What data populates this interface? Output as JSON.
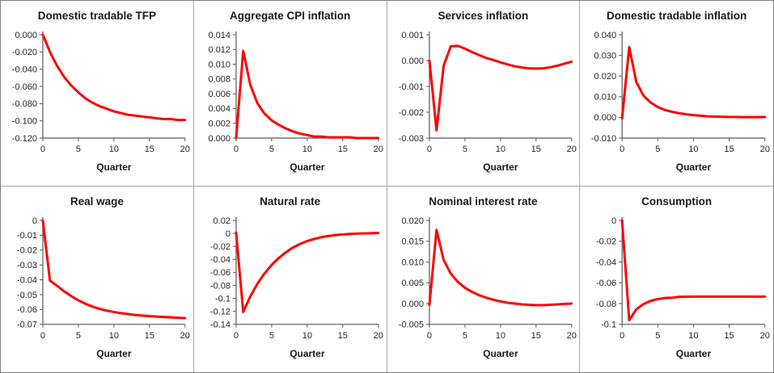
{
  "figure": {
    "layout": "2 rows x 4 columns",
    "panel_count": 8
  },
  "colors": {
    "line": "#FF0000",
    "axis": "#595959",
    "tick_text": "#262626",
    "title_text": "#1a1a1a",
    "outer_border": "#7f7f7f",
    "divider": "#a6a6a6",
    "background": "#ffffff"
  },
  "chart_data": [
    {
      "type": "line",
      "title": "Domestic tradable TFP",
      "xlabel": "Quarter",
      "xlim": [
        0,
        20
      ],
      "xticks": [
        0,
        5,
        10,
        15,
        20
      ],
      "ylim": [
        -0.12,
        0.0
      ],
      "yticks": [
        "0.000",
        "-0.020",
        "-0.040",
        "-0.060",
        "-0.080",
        "-0.100",
        "-0.120"
      ],
      "x": [
        0,
        1,
        2,
        3,
        4,
        5,
        6,
        7,
        8,
        9,
        10,
        11,
        12,
        13,
        14,
        15,
        16,
        17,
        18,
        19,
        20
      ],
      "values": [
        0,
        -0.02,
        -0.036,
        -0.049,
        -0.059,
        -0.067,
        -0.074,
        -0.079,
        -0.083,
        -0.086,
        -0.089,
        -0.091,
        -0.093,
        -0.094,
        -0.095,
        -0.096,
        -0.097,
        -0.098,
        -0.098,
        -0.099,
        -0.099
      ],
      "line_color": "#FF0000"
    },
    {
      "type": "line",
      "title": "Aggregate CPI inflation",
      "xlabel": "Quarter",
      "xlim": [
        0,
        20
      ],
      "xticks": [
        0,
        5,
        10,
        15,
        20
      ],
      "ylim": [
        0.0,
        0.014
      ],
      "yticks": [
        "0.014",
        "0.012",
        "0.010",
        "0.008",
        "0.006",
        "0.004",
        "0.002",
        "0.000"
      ],
      "x": [
        0,
        1,
        2,
        3,
        4,
        5,
        6,
        7,
        8,
        9,
        10,
        11,
        12,
        13,
        14,
        15,
        16,
        17,
        18,
        19,
        20
      ],
      "values": [
        0,
        0.0118,
        0.0072,
        0.0047,
        0.0033,
        0.0024,
        0.0018,
        0.0013,
        0.0009,
        0.0006,
        0.0004,
        0.0002,
        0.0002,
        0.0001,
        0.0001,
        0.0001,
        0.0001,
        0.0,
        0.0,
        0.0,
        0.0
      ],
      "line_color": "#FF0000"
    },
    {
      "type": "line",
      "title": "Services inflation",
      "xlabel": "Quarter",
      "xlim": [
        0,
        20
      ],
      "xticks": [
        0,
        5,
        10,
        15,
        20
      ],
      "ylim": [
        -0.003,
        0.001
      ],
      "yticks": [
        "0.001",
        "0.000",
        "-0.001",
        "-0.002",
        "-0.003"
      ],
      "x": [
        0,
        1,
        2,
        3,
        4,
        5,
        6,
        7,
        8,
        9,
        10,
        11,
        12,
        13,
        14,
        15,
        16,
        17,
        18,
        19,
        20
      ],
      "values": [
        0,
        -0.0027,
        -0.0002,
        0.00055,
        0.00057,
        0.00046,
        0.00033,
        0.00021,
        0.0001,
        2e-05,
        -7e-05,
        -0.00015,
        -0.00022,
        -0.00027,
        -0.0003,
        -0.00031,
        -0.0003,
        -0.00026,
        -0.0002,
        -0.00012,
        -4e-05
      ],
      "line_color": "#FF0000"
    },
    {
      "type": "line",
      "title": "Domestic tradable inflation",
      "xlabel": "Quarter",
      "xlim": [
        0,
        20
      ],
      "xticks": [
        0,
        5,
        10,
        15,
        20
      ],
      "ylim": [
        -0.01,
        0.04
      ],
      "yticks": [
        "0.040",
        "0.030",
        "0.020",
        "0.010",
        "0.000",
        "-0.010"
      ],
      "x": [
        0,
        1,
        2,
        3,
        4,
        5,
        6,
        7,
        8,
        9,
        10,
        11,
        12,
        13,
        14,
        15,
        16,
        17,
        18,
        19,
        20
      ],
      "values": [
        -0.0005,
        0.034,
        0.017,
        0.0105,
        0.0072,
        0.005,
        0.0036,
        0.0027,
        0.002,
        0.0015,
        0.0011,
        0.0008,
        0.0005,
        0.0004,
        0.0003,
        0.0002,
        0.0002,
        0.0001,
        0.0001,
        0.0001,
        0.0002
      ],
      "line_color": "#FF0000"
    },
    {
      "type": "line",
      "title": "Real wage",
      "xlabel": "Quarter",
      "xlim": [
        0,
        20
      ],
      "xticks": [
        0,
        5,
        10,
        15,
        20
      ],
      "ylim": [
        -0.07,
        0.0
      ],
      "yticks": [
        "0",
        "-0.01",
        "-0.02",
        "-0.03",
        "-0.04",
        "-0.05",
        "-0.06",
        "-0.07"
      ],
      "x": [
        0,
        1,
        2,
        3,
        4,
        5,
        6,
        7,
        8,
        9,
        10,
        11,
        12,
        13,
        14,
        15,
        16,
        17,
        18,
        19,
        20
      ],
      "values": [
        0,
        -0.0405,
        -0.044,
        -0.0478,
        -0.051,
        -0.0538,
        -0.0562,
        -0.0581,
        -0.0596,
        -0.0608,
        -0.0617,
        -0.0625,
        -0.0631,
        -0.0637,
        -0.0641,
        -0.0645,
        -0.0648,
        -0.0651,
        -0.0653,
        -0.0656,
        -0.0658
      ],
      "line_color": "#FF0000"
    },
    {
      "type": "line",
      "title": "Natural rate",
      "xlabel": "Quarter",
      "xlim": [
        0,
        20
      ],
      "xticks": [
        0,
        5,
        10,
        15,
        20
      ],
      "ylim": [
        -0.14,
        0.02
      ],
      "yticks": [
        "0.02",
        "0",
        "-0.02",
        "-0.04",
        "-0.06",
        "-0.08",
        "-0.1",
        "-0.12",
        "-0.14"
      ],
      "x": [
        0,
        1,
        2,
        3,
        4,
        5,
        6,
        7,
        8,
        9,
        10,
        11,
        12,
        13,
        14,
        15,
        16,
        17,
        18,
        19,
        20
      ],
      "values": [
        0.001,
        -0.121,
        -0.097,
        -0.0775,
        -0.0615,
        -0.0485,
        -0.0378,
        -0.029,
        -0.0218,
        -0.0162,
        -0.0118,
        -0.0084,
        -0.0058,
        -0.0039,
        -0.0025,
        -0.0015,
        -0.0008,
        -0.0003,
        0.0,
        0.0003,
        0.0008
      ],
      "line_color": "#FF0000"
    },
    {
      "type": "line",
      "title": "Nominal interest rate",
      "xlabel": "Quarter",
      "xlim": [
        0,
        20
      ],
      "xticks": [
        0,
        5,
        10,
        15,
        20
      ],
      "ylim": [
        -0.005,
        0.02
      ],
      "yticks": [
        "0.020",
        "0.015",
        "0.010",
        "0.005",
        "0.000",
        "-0.005"
      ],
      "x": [
        0,
        1,
        2,
        3,
        4,
        5,
        6,
        7,
        8,
        9,
        10,
        11,
        12,
        13,
        14,
        15,
        16,
        17,
        18,
        19,
        20
      ],
      "values": [
        -0.0003,
        0.0177,
        0.0105,
        0.0072,
        0.0052,
        0.0038,
        0.0028,
        0.002,
        0.0014,
        0.0009,
        0.0005,
        0.0002,
        0.0,
        -0.0002,
        -0.0003,
        -0.0004,
        -0.0004,
        -0.0003,
        -0.0002,
        -0.0001,
        0.0
      ],
      "line_color": "#FF0000"
    },
    {
      "type": "line",
      "title": "Consumption",
      "xlabel": "Quarter",
      "xlim": [
        0,
        20
      ],
      "xticks": [
        0,
        5,
        10,
        15,
        20
      ],
      "ylim": [
        -0.1,
        0.0
      ],
      "yticks": [
        "0",
        "-0.02",
        "-0.04",
        "-0.06",
        "-0.08",
        "-0.1"
      ],
      "x": [
        0,
        1,
        2,
        3,
        4,
        5,
        6,
        7,
        8,
        9,
        10,
        11,
        12,
        13,
        14,
        15,
        16,
        17,
        18,
        19,
        20
      ],
      "values": [
        0,
        -0.096,
        -0.0855,
        -0.0805,
        -0.0775,
        -0.0757,
        -0.0747,
        -0.0744,
        -0.0735,
        -0.0734,
        -0.0733,
        -0.0733,
        -0.0733,
        -0.0733,
        -0.0733,
        -0.0733,
        -0.0733,
        -0.0733,
        -0.0733,
        -0.0733,
        -0.0733
      ],
      "line_color": "#FF0000"
    }
  ]
}
